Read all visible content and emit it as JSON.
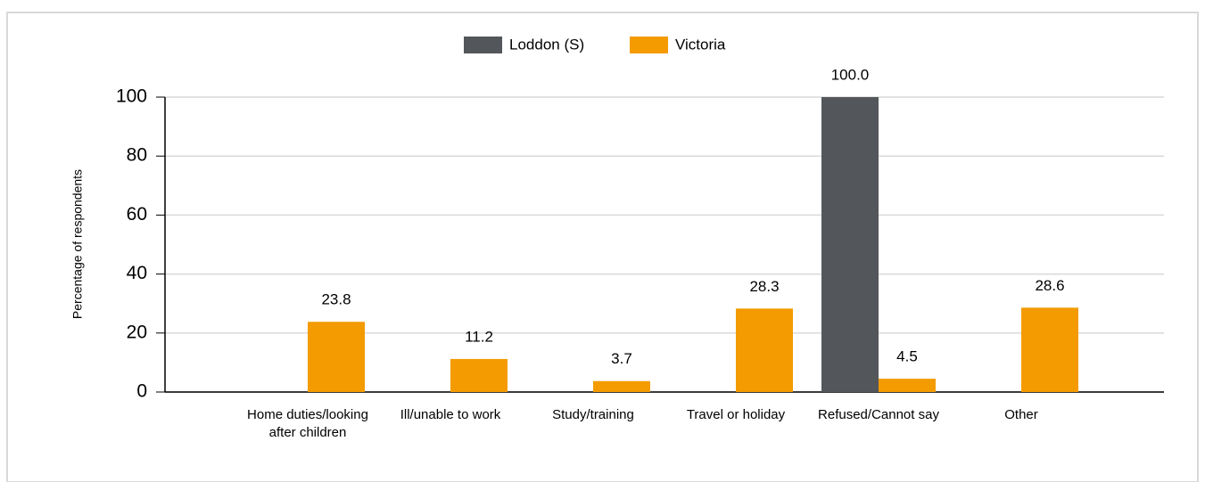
{
  "chart_data": {
    "type": "bar",
    "categories": [
      "Home duties/looking after children",
      "Ill/unable to work",
      "Study/training",
      "Travel or holiday",
      "Refused/Cannot say",
      "Other"
    ],
    "series": [
      {
        "name": "Loddon (S)",
        "color": "#53565a",
        "values": [
          null,
          null,
          null,
          null,
          100,
          null
        ],
        "value_labels": [
          null,
          null,
          null,
          null,
          "100.0",
          null
        ]
      },
      {
        "name": "Victoria",
        "color": "#f39b00",
        "values": [
          23.8,
          11.2,
          3.7,
          28.3,
          4.5,
          28.6
        ]
      }
    ],
    "y_label": "Percentage of respondents",
    "ylim": [
      0,
      100
    ],
    "yticks": [
      0,
      20,
      40,
      60,
      80,
      100
    ],
    "grid": true,
    "legend": "top"
  }
}
